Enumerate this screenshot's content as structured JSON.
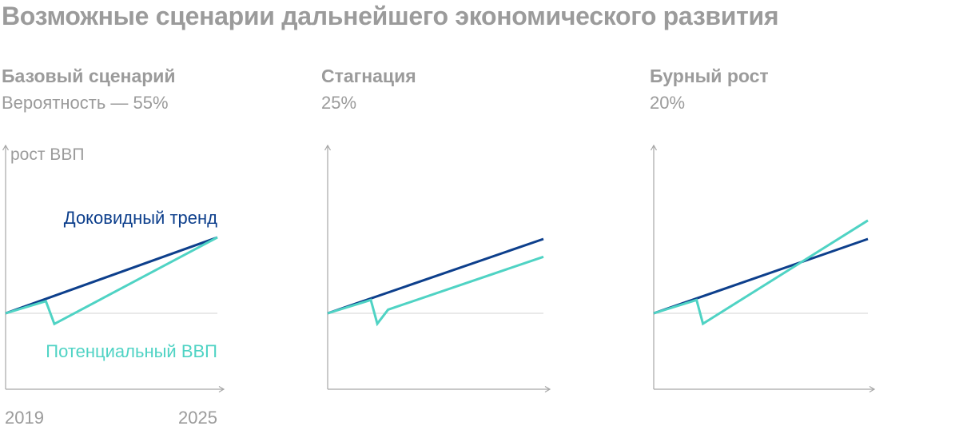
{
  "title": "Возможные сценарии дальнейшего экономического развития",
  "colors": {
    "text_gray": "#9b9b9b",
    "trend": "#0d3f8c",
    "potential": "#4fd3c4",
    "axis": "#a6a6a6",
    "baseline": "#dcdcdc"
  },
  "panels": [
    {
      "name": "Базовый сценарий",
      "probability": "Вероятность — 55%"
    },
    {
      "name": "Стагнация",
      "probability": "25%"
    },
    {
      "name": "Бурный рост",
      "probability": "20%"
    }
  ],
  "chart_data": [
    {
      "type": "line",
      "title": "Базовый сценарий",
      "subtitle": "Вероятность — 55%",
      "ylabel": "рост ВВП",
      "x_tick_labels": [
        "2019",
        "2025"
      ],
      "xlim": [
        0,
        100
      ],
      "ylim": [
        -30,
        100
      ],
      "series": [
        {
          "name": "Доковидный тренд",
          "x": [
            0,
            100
          ],
          "y": [
            0,
            100
          ]
        },
        {
          "name": "Потенциальный ВВП",
          "x": [
            0,
            19,
            23,
            100
          ],
          "y": [
            0,
            16,
            -14,
            100
          ]
        }
      ]
    },
    {
      "type": "line",
      "title": "Стагнация",
      "subtitle": "25%",
      "xlim": [
        0,
        100
      ],
      "ylim": [
        -30,
        100
      ],
      "series": [
        {
          "x": [
            0,
            100
          ],
          "y": [
            0,
            100
          ]
        },
        {
          "x": [
            0,
            20,
            23,
            28,
            100
          ],
          "y": [
            0,
            18,
            -14,
            5,
            76
          ]
        }
      ]
    },
    {
      "type": "line",
      "title": "Бурный рост",
      "subtitle": "20%",
      "xlim": [
        0,
        100
      ],
      "ylim": [
        -30,
        100
      ],
      "series": [
        {
          "x": [
            0,
            100
          ],
          "y": [
            0,
            100
          ]
        },
        {
          "x": [
            0,
            20,
            23,
            100
          ],
          "y": [
            0,
            18,
            -14,
            125
          ]
        }
      ]
    }
  ]
}
